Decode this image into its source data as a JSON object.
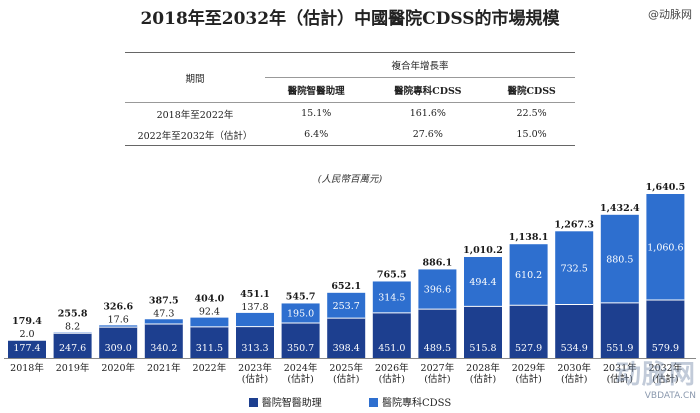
{
  "title": "2018年至2032年（估計）中國醫院CDSS的市場規模",
  "watermark_top": "@动脉网",
  "table": {
    "period_header": "期間",
    "cagr_header": "複合年增長率",
    "columns": [
      "醫院智醫助理",
      "醫院專科CDSS",
      "醫院CDSS"
    ],
    "rows": [
      {
        "period": "2018年至2022年",
        "values": [
          "15.1%",
          "161.6%",
          "22.5%"
        ]
      },
      {
        "period": "2022年至2032年（估計）",
        "values": [
          "6.4%",
          "27.6%",
          "15.0%"
        ]
      }
    ]
  },
  "unit_label": "(人民幣百萬元)",
  "colors": {
    "assistant": "#1d3f8f",
    "specialty": "#2e6fcf"
  },
  "chart_data": {
    "type": "bar",
    "stacked": true,
    "categories": [
      "2018年",
      "2019年",
      "2020年",
      "2021年",
      "2022年",
      "2023年\n(估計)",
      "2024年\n(估計)",
      "2025年\n(估計)",
      "2026年\n(估計)",
      "2027年\n(估計)",
      "2028年\n(估計)",
      "2029年\n(估計)",
      "2030年\n(估計)",
      "2031年\n(估計)",
      "2032年\n(估計)"
    ],
    "series": [
      {
        "name": "醫院智醫助理",
        "values": [
          177.4,
          247.6,
          309.0,
          340.2,
          311.5,
          313.3,
          350.7,
          398.4,
          451.0,
          489.5,
          515.8,
          527.9,
          534.9,
          551.9,
          579.9
        ]
      },
      {
        "name": "醫院專科CDSS",
        "values": [
          2.0,
          8.2,
          17.6,
          47.3,
          92.4,
          137.8,
          195.0,
          253.7,
          314.5,
          396.6,
          494.4,
          610.2,
          732.5,
          880.5,
          1060.6
        ]
      }
    ],
    "totals": [
      "179.4",
      "255.8",
      "326.6",
      "387.5",
      "404.0",
      "451.1",
      "545.7",
      "652.1",
      "765.5",
      "886.1",
      "1,010.2",
      "1,138.1",
      "1,267.3",
      "1,432.4",
      "1,640.5"
    ],
    "bottom_labels": [
      "177.4",
      "247.6",
      "309.0",
      "340.2",
      "311.5",
      "313.3",
      "350.7",
      "398.4",
      "451.0",
      "489.5",
      "515.8",
      "527.9",
      "534.9",
      "551.9",
      "579.9"
    ],
    "top_labels": [
      "2.0",
      "8.2",
      "17.6",
      "47.3",
      "92.4",
      "137.8",
      "195.0",
      "253.7",
      "314.5",
      "396.6",
      "494.4",
      "610.2",
      "732.5",
      "880.5",
      "1,060.6"
    ],
    "ylim": [
      0,
      1640.5
    ],
    "legend": [
      "醫院智醫助理",
      "醫院專科CDSS"
    ],
    "legend_position": "bottom"
  },
  "watermark_bottom": {
    "text": "动脉网",
    "url": "VBDATA.CN"
  }
}
